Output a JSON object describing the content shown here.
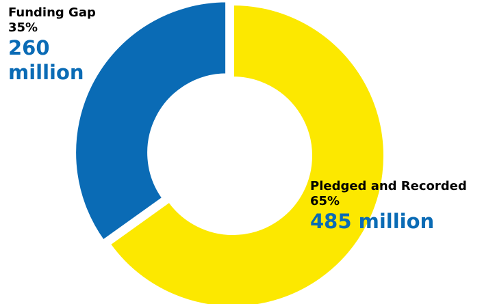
{
  "chart_data": {
    "type": "pie",
    "donut": true,
    "slices": [
      {
        "label": "Pledged and Recorded",
        "percent_label": "65%",
        "amount_label": "485 million",
        "value": 485,
        "percent": 65,
        "color": "#fce800"
      },
      {
        "label": "Funding Gap",
        "percent_label": "35%",
        "amount_label": "260 million",
        "value": 260,
        "percent": 35,
        "color": "#0a6bb5"
      }
    ],
    "legend": "none",
    "title": ""
  }
}
